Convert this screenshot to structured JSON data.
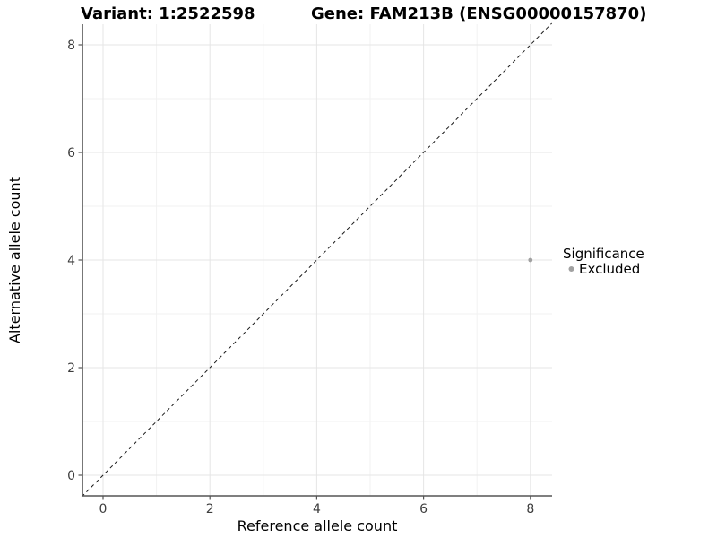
{
  "titles": {
    "variant": "Variant: 1:2522598",
    "gene": "Gene: FAM213B (ENSG00000157870)"
  },
  "chart_data": {
    "type": "scatter",
    "title_left": "Variant: 1:2522598",
    "title_right": "Gene: FAM213B (ENSG00000157870)",
    "xlabel": "Reference allele count",
    "ylabel": "Alternative allele count",
    "xlim": [
      -0.4,
      8.4
    ],
    "ylim": [
      -0.4,
      8.4
    ],
    "x_ticks": [
      "0",
      "2",
      "4",
      "6",
      "8"
    ],
    "y_ticks": [
      "0",
      "2",
      "4",
      "6",
      "8"
    ],
    "grid": "major and minor gridlines on white panel",
    "legend_position": "right",
    "points": [
      {
        "x": 8,
        "y": 4,
        "significance": "Excluded"
      }
    ],
    "identity_line": {
      "equation": "y = x",
      "style": "dashed",
      "color": "#1a1a1a"
    },
    "legend": {
      "title": "Significance",
      "items": [
        {
          "label": "Excluded",
          "color": "#a1a1a1"
        }
      ]
    }
  },
  "colors": {
    "point": "#a1a1a1",
    "axis": "#555555",
    "grid_major": "#e5e5e5",
    "grid_minor": "#f2f2f2",
    "background": "#ffffff"
  }
}
